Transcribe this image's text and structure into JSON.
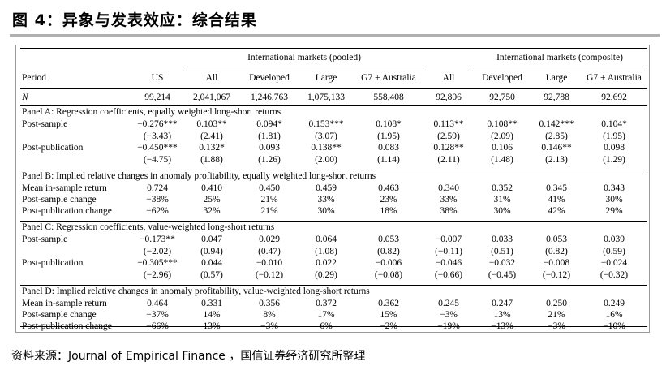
{
  "title": "图 4：异象与发表效应：综合结果",
  "source": "资料来源：Journal of Empirical Finance ，国信证券经济研究所整理",
  "table": {
    "group_headers": [
      "International markets (pooled)",
      "International markets (composite)"
    ],
    "columns": [
      "Period",
      "US",
      "All",
      "Developed",
      "Large",
      "G7 + Australia",
      "All",
      "Developed",
      "Large",
      "G7 + Australia"
    ],
    "n_row": {
      "label": "N",
      "values": [
        "99,214",
        "2,041,067",
        "1,246,763",
        "1,075,133",
        "558,408",
        "92,806",
        "92,750",
        "92,788",
        "92,692"
      ]
    },
    "panels": [
      {
        "title": "Panel A: Regression coefficients, equally weighted long-short returns",
        "rows": [
          {
            "label": "Post-sample",
            "values": [
              "−0.276***",
              "0.103**",
              "0.094*",
              "0.153***",
              "0.108*",
              "0.113**",
              "0.108**",
              "0.142***",
              "0.104*"
            ]
          },
          {
            "label": "",
            "values": [
              "(−3.43)",
              "(2.41)",
              "(1.81)",
              "(3.07)",
              "(1.95)",
              "(2.59)",
              "(2.09)",
              "(2.85)",
              "(1.95)"
            ]
          },
          {
            "label": "Post-publication",
            "values": [
              "−0.450***",
              "0.132*",
              "0.093",
              "0.138**",
              "0.083",
              "0.128**",
              "0.106",
              "0.146**",
              "0.098"
            ]
          },
          {
            "label": "",
            "values": [
              "(−4.75)",
              "(1.88)",
              "(1.26)",
              "(2.00)",
              "(1.14)",
              "(2.11)",
              "(1.48)",
              "(2.13)",
              "(1.29)"
            ]
          }
        ]
      },
      {
        "title": "Panel B: Implied relative changes in anomaly profitability, equally weighted long-short returns",
        "rows": [
          {
            "label": "Mean in-sample return",
            "values": [
              "0.724",
              "0.410",
              "0.450",
              "0.459",
              "0.463",
              "0.340",
              "0.352",
              "0.345",
              "0.343"
            ]
          },
          {
            "label": "Post-sample change",
            "values": [
              "−38%",
              "25%",
              "21%",
              "33%",
              "23%",
              "33%",
              "31%",
              "41%",
              "30%"
            ]
          },
          {
            "label": "Post-publication change",
            "values": [
              "−62%",
              "32%",
              "21%",
              "30%",
              "18%",
              "38%",
              "30%",
              "42%",
              "29%"
            ]
          }
        ]
      },
      {
        "title": "Panel C: Regression coefficients, value-weighted long-short returns",
        "rows": [
          {
            "label": "Post-sample",
            "values": [
              "−0.173**",
              "0.047",
              "0.029",
              "0.064",
              "0.053",
              "−0.007",
              "0.033",
              "0.053",
              "0.039"
            ]
          },
          {
            "label": "",
            "values": [
              "(−2.02)",
              "(0.94)",
              "(0.47)",
              "(1.08)",
              "(0.82)",
              "(−0.11)",
              "(0.51)",
              "(0.82)",
              "(0.59)"
            ]
          },
          {
            "label": "Post-publication",
            "values": [
              "−0.305***",
              "0.044",
              "−0.010",
              "0.022",
              "−0.006",
              "−0.046",
              "−0.032",
              "−0.008",
              "−0.024"
            ]
          },
          {
            "label": "",
            "values": [
              "(−2.96)",
              "(0.57)",
              "(−0.12)",
              "(0.29)",
              "(−0.08)",
              "(−0.66)",
              "(−0.45)",
              "(−0.12)",
              "(−0.32)"
            ]
          }
        ]
      },
      {
        "title": "Panel D: Implied relative changes in anomaly profitability, value-weighted long-short returns",
        "rows": [
          {
            "label": "Mean in-sample return",
            "values": [
              "0.464",
              "0.331",
              "0.356",
              "0.372",
              "0.362",
              "0.245",
              "0.247",
              "0.250",
              "0.249"
            ]
          },
          {
            "label": "Post-sample change",
            "values": [
              "−37%",
              "14%",
              "8%",
              "17%",
              "15%",
              "−3%",
              "13%",
              "21%",
              "16%"
            ]
          },
          {
            "label": "Post-publication change",
            "values": [
              "−66%",
              "13%",
              "−3%",
              "6%",
              "−2%",
              "−19%",
              "−13%",
              "−3%",
              "−10%"
            ]
          }
        ]
      }
    ]
  }
}
